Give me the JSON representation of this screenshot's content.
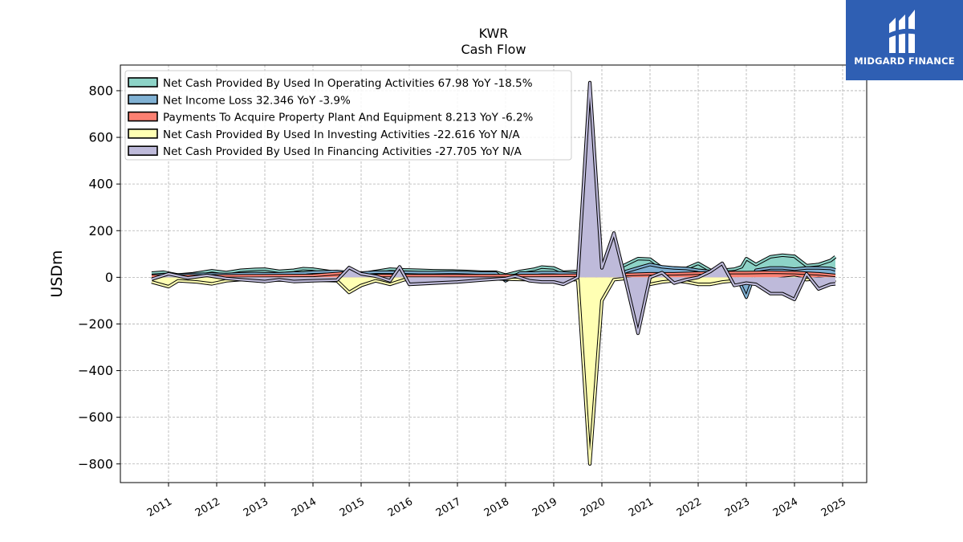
{
  "chart_data": {
    "type": "area",
    "title": "KWR",
    "subtitle": "Cash Flow",
    "ylabel": "USDm",
    "xlabel": "",
    "ylim": [
      -880,
      910
    ],
    "yticks": [
      -800,
      -600,
      -400,
      -200,
      0,
      200,
      400,
      600,
      800
    ],
    "ytick_labels": [
      "−800",
      "−600",
      "−400",
      "−200",
      "0",
      "200",
      "400",
      "600",
      "800"
    ],
    "xlim": [
      2010.0,
      2025.5
    ],
    "xticks": [
      2011,
      2012,
      2013,
      2014,
      2015,
      2016,
      2017,
      2018,
      2019,
      2020,
      2021,
      2022,
      2023,
      2024,
      2025
    ],
    "xtick_labels": [
      "2011",
      "2012",
      "2013",
      "2014",
      "2015",
      "2016",
      "2017",
      "2018",
      "2019",
      "2020",
      "2021",
      "2022",
      "2023",
      "2024",
      "2025"
    ],
    "grid": true,
    "legend_position": "top-left",
    "series": [
      {
        "name": "Net Cash Provided By Used In Operating Activities",
        "legend": "Net Cash Provided By Used In Operating Activities  67.98 YoY -18.5%",
        "color": "#8dd3c7",
        "points": [
          [
            2010.65,
            18
          ],
          [
            2010.9,
            22
          ],
          [
            2011.2,
            10
          ],
          [
            2011.5,
            15
          ],
          [
            2011.9,
            28
          ],
          [
            2012.2,
            20
          ],
          [
            2012.5,
            30
          ],
          [
            2012.8,
            34
          ],
          [
            2013.0,
            35
          ],
          [
            2013.3,
            26
          ],
          [
            2013.6,
            30
          ],
          [
            2013.8,
            37
          ],
          [
            2014.0,
            35
          ],
          [
            2014.5,
            20
          ],
          [
            2014.75,
            10
          ],
          [
            2015.0,
            15
          ],
          [
            2015.3,
            25
          ],
          [
            2015.6,
            35
          ],
          [
            2015.9,
            32
          ],
          [
            2016.2,
            30
          ],
          [
            2016.5,
            28
          ],
          [
            2016.9,
            27
          ],
          [
            2017.2,
            25
          ],
          [
            2017.5,
            22
          ],
          [
            2017.8,
            22
          ],
          [
            2018.0,
            10
          ],
          [
            2018.3,
            25
          ],
          [
            2018.6,
            35
          ],
          [
            2018.75,
            44
          ],
          [
            2019.0,
            40
          ],
          [
            2019.2,
            22
          ],
          [
            2019.5,
            25
          ],
          [
            2019.75,
            28
          ],
          [
            2020.0,
            48
          ],
          [
            2020.25,
            30
          ],
          [
            2020.5,
            55
          ],
          [
            2020.75,
            80
          ],
          [
            2021.0,
            78
          ],
          [
            2021.25,
            40
          ],
          [
            2021.5,
            40
          ],
          [
            2021.75,
            38
          ],
          [
            2022.0,
            60
          ],
          [
            2022.25,
            30
          ],
          [
            2022.5,
            30
          ],
          [
            2022.75,
            35
          ],
          [
            2022.9,
            45
          ],
          [
            2023.0,
            80
          ],
          [
            2023.2,
            55
          ],
          [
            2023.5,
            88
          ],
          [
            2023.75,
            95
          ],
          [
            2024.0,
            90
          ],
          [
            2024.25,
            50
          ],
          [
            2024.5,
            55
          ],
          [
            2024.75,
            72
          ],
          [
            2024.85,
            88
          ]
        ]
      },
      {
        "name": "Net Income Loss",
        "legend": "Net Income Loss  32.346 YoY -3.9%",
        "color": "#80b1d3",
        "points": [
          [
            2010.65,
            8
          ],
          [
            2010.9,
            12
          ],
          [
            2011.2,
            10
          ],
          [
            2011.5,
            12
          ],
          [
            2011.9,
            14
          ],
          [
            2012.2,
            12
          ],
          [
            2012.5,
            15
          ],
          [
            2012.8,
            16
          ],
          [
            2013.0,
            15
          ],
          [
            2013.3,
            15
          ],
          [
            2013.6,
            18
          ],
          [
            2013.8,
            18
          ],
          [
            2014.0,
            22
          ],
          [
            2014.5,
            25
          ],
          [
            2014.75,
            20
          ],
          [
            2015.0,
            18
          ],
          [
            2015.3,
            22
          ],
          [
            2015.6,
            22
          ],
          [
            2015.9,
            22
          ],
          [
            2016.2,
            20
          ],
          [
            2016.5,
            20
          ],
          [
            2016.9,
            22
          ],
          [
            2017.2,
            20
          ],
          [
            2017.5,
            18
          ],
          [
            2017.8,
            18
          ],
          [
            2018.0,
            -15
          ],
          [
            2018.3,
            18
          ],
          [
            2018.6,
            18
          ],
          [
            2018.75,
            20
          ],
          [
            2019.0,
            20
          ],
          [
            2019.2,
            18
          ],
          [
            2019.5,
            15
          ],
          [
            2019.75,
            -18
          ],
          [
            2020.0,
            5
          ],
          [
            2020.25,
            -10
          ],
          [
            2020.5,
            25
          ],
          [
            2020.75,
            40
          ],
          [
            2021.0,
            55
          ],
          [
            2021.25,
            45
          ],
          [
            2021.5,
            40
          ],
          [
            2021.75,
            38
          ],
          [
            2022.0,
            30
          ],
          [
            2022.25,
            25
          ],
          [
            2022.5,
            25
          ],
          [
            2022.75,
            20
          ],
          [
            2022.9,
            -40
          ],
          [
            2023.0,
            -85
          ],
          [
            2023.2,
            30
          ],
          [
            2023.5,
            40
          ],
          [
            2023.75,
            40
          ],
          [
            2024.0,
            35
          ],
          [
            2024.25,
            40
          ],
          [
            2024.5,
            40
          ],
          [
            2024.75,
            38
          ],
          [
            2024.85,
            32
          ]
        ]
      },
      {
        "name": "Payments To Acquire Property Plant And Equipment",
        "legend": "Payments To Acquire Property Plant And Equipment  8.213 YoY -6.2%",
        "color": "#fb8072",
        "points": [
          [
            2010.65,
            5
          ],
          [
            2011.0,
            5
          ],
          [
            2012.0,
            6
          ],
          [
            2013.0,
            7
          ],
          [
            2014.0,
            8
          ],
          [
            2014.75,
            20
          ],
          [
            2015.0,
            8
          ],
          [
            2016.0,
            7
          ],
          [
            2017.0,
            7
          ],
          [
            2018.0,
            7
          ],
          [
            2019.0,
            8
          ],
          [
            2020.0,
            10
          ],
          [
            2020.5,
            12
          ],
          [
            2021.0,
            15
          ],
          [
            2021.5,
            15
          ],
          [
            2022.0,
            18
          ],
          [
            2022.5,
            20
          ],
          [
            2023.0,
            20
          ],
          [
            2023.5,
            22
          ],
          [
            2024.0,
            20
          ],
          [
            2024.5,
            15
          ],
          [
            2024.85,
            8
          ]
        ]
      },
      {
        "name": "Net Cash Provided By Used In Investing Activities",
        "legend": "Net Cash Provided By Used In Investing Activities  -22.616 YoY N/A",
        "color": "#ffffb3",
        "points": [
          [
            2010.65,
            -20
          ],
          [
            2011.0,
            -40
          ],
          [
            2011.2,
            -15
          ],
          [
            2011.6,
            -20
          ],
          [
            2011.9,
            -28
          ],
          [
            2012.2,
            -15
          ],
          [
            2012.5,
            -10
          ],
          [
            2012.8,
            -12
          ],
          [
            2013.0,
            -10
          ],
          [
            2013.3,
            -12
          ],
          [
            2013.6,
            -10
          ],
          [
            2014.0,
            -12
          ],
          [
            2014.5,
            -15
          ],
          [
            2014.75,
            -65
          ],
          [
            2015.0,
            -35
          ],
          [
            2015.3,
            -15
          ],
          [
            2015.6,
            -30
          ],
          [
            2015.9,
            -10
          ],
          [
            2016.2,
            -10
          ],
          [
            2016.5,
            -8
          ],
          [
            2017.0,
            -5
          ],
          [
            2017.5,
            -5
          ],
          [
            2018.0,
            -8
          ],
          [
            2018.5,
            -10
          ],
          [
            2019.0,
            -10
          ],
          [
            2019.5,
            -10
          ],
          [
            2019.75,
            -800
          ],
          [
            2020.0,
            -100
          ],
          [
            2020.25,
            -10
          ],
          [
            2020.5,
            -5
          ],
          [
            2020.75,
            -10
          ],
          [
            2021.0,
            -30
          ],
          [
            2021.25,
            -20
          ],
          [
            2021.5,
            -15
          ],
          [
            2021.75,
            -20
          ],
          [
            2022.0,
            -30
          ],
          [
            2022.25,
            -30
          ],
          [
            2022.5,
            -20
          ],
          [
            2022.75,
            -15
          ],
          [
            2023.0,
            -12
          ],
          [
            2023.25,
            -15
          ],
          [
            2023.5,
            -12
          ],
          [
            2023.75,
            -5
          ],
          [
            2024.0,
            0
          ],
          [
            2024.25,
            -10
          ],
          [
            2024.5,
            -5
          ],
          [
            2024.75,
            -10
          ],
          [
            2024.85,
            -22
          ]
        ]
      },
      {
        "name": "Net Cash Provided By Used In Financing Activities",
        "legend": "Net Cash Provided By Used In Financing Activities  -27.705 YoY N/A",
        "color": "#bebada",
        "points": [
          [
            2010.65,
            -8
          ],
          [
            2011.0,
            15
          ],
          [
            2011.4,
            -3
          ],
          [
            2011.8,
            8
          ],
          [
            2012.2,
            -5
          ],
          [
            2012.5,
            -10
          ],
          [
            2012.8,
            -15
          ],
          [
            2013.0,
            -18
          ],
          [
            2013.3,
            -10
          ],
          [
            2013.6,
            -18
          ],
          [
            2014.0,
            -15
          ],
          [
            2014.5,
            -12
          ],
          [
            2014.75,
            42
          ],
          [
            2015.0,
            15
          ],
          [
            2015.3,
            5
          ],
          [
            2015.6,
            -15
          ],
          [
            2015.8,
            45
          ],
          [
            2016.0,
            -30
          ],
          [
            2016.5,
            -25
          ],
          [
            2017.0,
            -20
          ],
          [
            2017.5,
            -12
          ],
          [
            2018.0,
            -5
          ],
          [
            2018.2,
            5
          ],
          [
            2018.5,
            -15
          ],
          [
            2018.75,
            -20
          ],
          [
            2019.0,
            -20
          ],
          [
            2019.2,
            -30
          ],
          [
            2019.5,
            0
          ],
          [
            2019.75,
            835
          ],
          [
            2020.0,
            40
          ],
          [
            2020.25,
            190
          ],
          [
            2020.5,
            -20
          ],
          [
            2020.75,
            -240
          ],
          [
            2021.0,
            0
          ],
          [
            2021.25,
            20
          ],
          [
            2021.5,
            -25
          ],
          [
            2021.75,
            -10
          ],
          [
            2022.0,
            0
          ],
          [
            2022.25,
            25
          ],
          [
            2022.5,
            60
          ],
          [
            2022.75,
            -35
          ],
          [
            2023.0,
            -25
          ],
          [
            2023.2,
            -30
          ],
          [
            2023.5,
            -70
          ],
          [
            2023.75,
            -70
          ],
          [
            2024.0,
            -95
          ],
          [
            2024.25,
            15
          ],
          [
            2024.5,
            -50
          ],
          [
            2024.75,
            -30
          ],
          [
            2024.85,
            -28
          ]
        ]
      }
    ]
  },
  "branding": {
    "logo_text": "MIDGARD FINANCE",
    "logo_color": "#2f5fb3"
  }
}
